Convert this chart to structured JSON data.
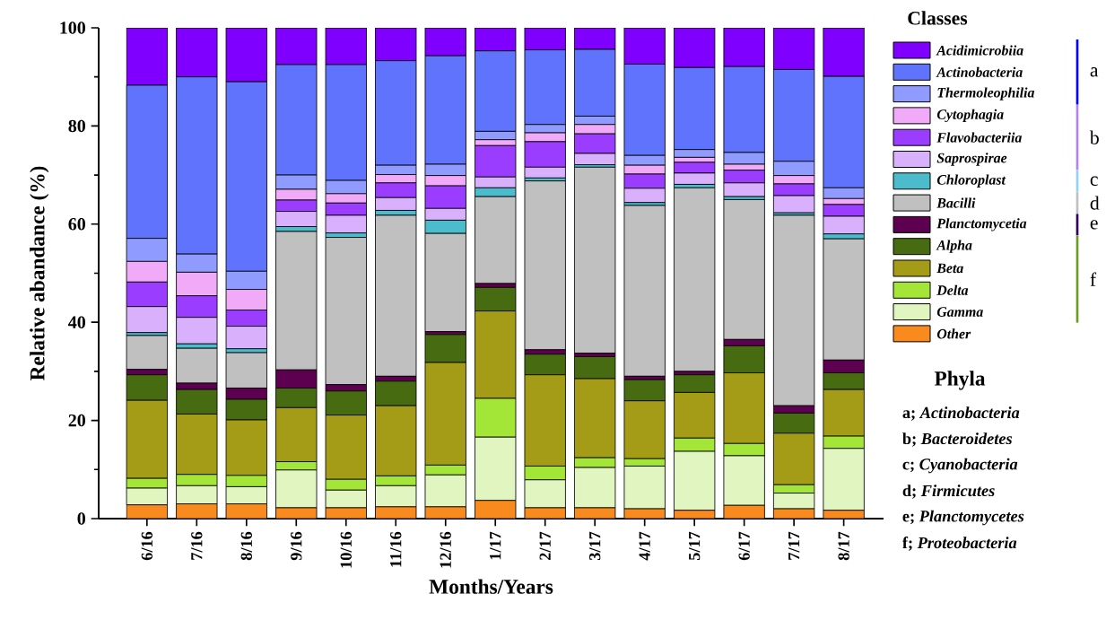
{
  "chart_data": {
    "type": "bar",
    "stacked": true,
    "xlabel": "Months/Years",
    "ylabel": "Relative abandance (%)",
    "legend_title": "Classes",
    "legend": "right",
    "grid": false,
    "categories": [
      "6/16",
      "7/16",
      "8/16",
      "9/16",
      "10/16",
      "11/16",
      "12/16",
      "1/17",
      "2/17",
      "3/17",
      "4/17",
      "5/17",
      "6/17",
      "7/17",
      "8/17"
    ],
    "ylim": [
      0,
      100
    ],
    "yticks": [
      0,
      20,
      40,
      60,
      80,
      100
    ],
    "series": [
      {
        "name": "Other",
        "color": "#f98a1e",
        "values": [
          2.8,
          3.0,
          3.0,
          2.2,
          2.2,
          2.4,
          2.4,
          3.7,
          2.2,
          2.2,
          2.0,
          1.7,
          2.7,
          2.0,
          1.7
        ]
      },
      {
        "name": "Gamma",
        "color": "#e0f5c0",
        "values": [
          3.4,
          3.7,
          3.5,
          7.7,
          3.6,
          4.3,
          6.5,
          12.9,
          5.7,
          8.2,
          8.7,
          12.0,
          10.1,
          3.2,
          12.6
        ]
      },
      {
        "name": "Delta",
        "color": "#a3e637",
        "values": [
          2.0,
          2.3,
          2.3,
          1.7,
          2.2,
          2.0,
          2.0,
          7.9,
          2.8,
          2.0,
          1.5,
          2.7,
          2.5,
          1.7,
          2.5
        ]
      },
      {
        "name": "Beta",
        "color": "#a49c16",
        "values": [
          15.9,
          12.3,
          11.3,
          11.0,
          13.1,
          14.3,
          20.9,
          17.8,
          18.6,
          16.1,
          11.8,
          9.3,
          14.4,
          10.5,
          9.5
        ]
      },
      {
        "name": "Alpha",
        "color": "#466b10",
        "values": [
          5.2,
          5.0,
          4.2,
          4.0,
          4.9,
          5.0,
          5.7,
          4.8,
          4.2,
          4.5,
          4.3,
          3.6,
          5.5,
          4.1,
          3.4
        ]
      },
      {
        "name": "Planctomycetia",
        "color": "#5e0050",
        "values": [
          1.1,
          1.3,
          2.3,
          3.7,
          1.3,
          1.0,
          0.6,
          0.8,
          0.9,
          0.7,
          0.7,
          0.7,
          1.3,
          1.5,
          2.6
        ]
      },
      {
        "name": "Bacilli",
        "color": "#c0c0c0",
        "values": [
          6.9,
          7.1,
          7.2,
          28.2,
          30.0,
          32.8,
          20.0,
          17.7,
          34.4,
          37.9,
          34.8,
          37.4,
          28.5,
          38.8,
          24.7
        ]
      },
      {
        "name": "Chloroplast",
        "color": "#4cbccc",
        "values": [
          0.6,
          0.9,
          0.8,
          1.0,
          0.9,
          1.0,
          2.7,
          1.8,
          0.6,
          0.5,
          0.6,
          0.7,
          0.6,
          0.5,
          1.0
        ]
      },
      {
        "name": "Saprospirae",
        "color": "#d8b0fb",
        "values": [
          5.3,
          5.4,
          4.6,
          3.1,
          3.6,
          2.6,
          2.4,
          2.2,
          2.2,
          2.3,
          2.9,
          2.3,
          2.8,
          3.5,
          3.6
        ]
      },
      {
        "name": "Flavobacteriia",
        "color": "#9a3dff",
        "values": [
          5.0,
          4.4,
          3.3,
          2.3,
          2.5,
          3.0,
          4.6,
          6.4,
          5.2,
          4.0,
          2.9,
          2.2,
          2.6,
          2.4,
          2.4
        ]
      },
      {
        "name": "Cytophagia",
        "color": "#f0aaf8",
        "values": [
          4.2,
          4.8,
          4.2,
          2.2,
          1.9,
          1.7,
          2.1,
          1.2,
          1.8,
          1.9,
          1.8,
          1.0,
          1.2,
          1.7,
          1.2
        ]
      },
      {
        "name": "Thermoleophilia",
        "color": "#8f9bff",
        "values": [
          4.7,
          3.7,
          3.7,
          2.9,
          2.7,
          1.9,
          2.3,
          1.7,
          1.7,
          1.7,
          2.0,
          1.6,
          2.4,
          2.9,
          2.2
        ]
      },
      {
        "name": "Actinobacteria",
        "color": "#5f73fd",
        "values": [
          31.2,
          36.1,
          38.6,
          22.5,
          23.6,
          21.3,
          22.1,
          16.4,
          15.2,
          13.6,
          18.6,
          16.7,
          17.5,
          18.7,
          22.7
        ]
      },
      {
        "name": "Acidimicrobiia",
        "color": "#8000ff",
        "values": [
          11.7,
          10.0,
          11.0,
          7.5,
          7.5,
          6.7,
          5.7,
          4.7,
          4.5,
          4.4,
          7.4,
          8.1,
          7.9,
          8.5,
          9.9
        ]
      }
    ],
    "annotations": [
      "a",
      "b",
      "c",
      "d",
      "e",
      "f",
      "Phyla",
      "a; *Actinobacteria*",
      "b; *Bacteroidetes*",
      "c; *Cyanobacteria*",
      "d; *Firmicutes*",
      "e; *Planctomycetes*",
      "f; *Proteobacteria*"
    ]
  }
}
